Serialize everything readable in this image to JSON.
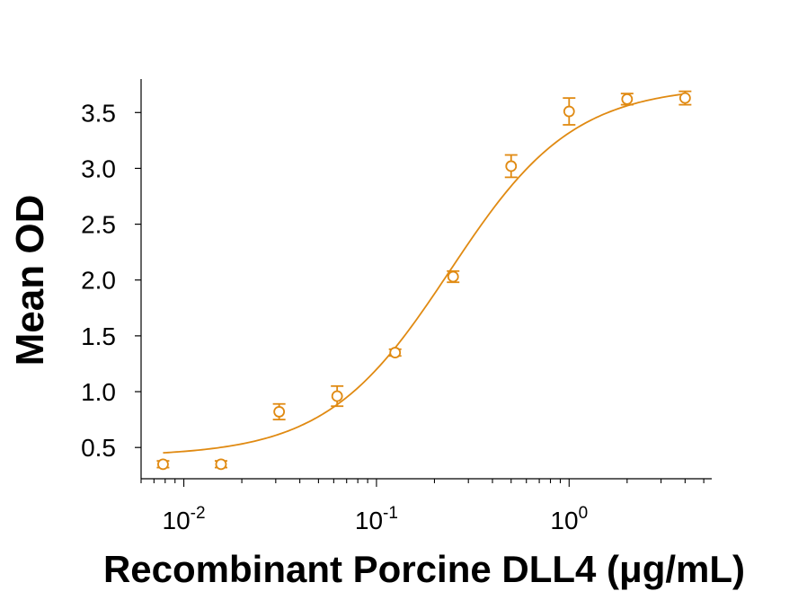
{
  "chart_data": {
    "type": "scatter",
    "title": "",
    "xlabel": "Recombinant Porcine DLL4 (μg/mL)",
    "ylabel": "Mean OD",
    "xscale": "log",
    "xlim": [
      0.006,
      5.5
    ],
    "ylim": [
      0.22,
      3.8
    ],
    "x_ticks": [
      {
        "value": 0.01,
        "base": "10",
        "exp": "-2"
      },
      {
        "value": 0.1,
        "base": "10",
        "exp": "-1"
      },
      {
        "value": 1,
        "base": "10",
        "exp": "0"
      }
    ],
    "y_ticks": [
      {
        "value": 0.5,
        "label": "0.5"
      },
      {
        "value": 1.0,
        "label": "1.0"
      },
      {
        "value": 1.5,
        "label": "1.5"
      },
      {
        "value": 2.0,
        "label": "2.0"
      },
      {
        "value": 2.5,
        "label": "2.5"
      },
      {
        "value": 3.0,
        "label": "3.0"
      },
      {
        "value": 3.5,
        "label": "3.5"
      }
    ],
    "grid": false,
    "legend": "none",
    "color": "#E08A12",
    "series": [
      {
        "points": [
          {
            "x": 0.0078,
            "y": 0.35,
            "err": 0.03
          },
          {
            "x": 0.0156,
            "y": 0.35,
            "err": 0.03
          },
          {
            "x": 0.03125,
            "y": 0.82,
            "err": 0.07
          },
          {
            "x": 0.0625,
            "y": 0.96,
            "err": 0.09
          },
          {
            "x": 0.125,
            "y": 1.35,
            "err": 0.03
          },
          {
            "x": 0.25,
            "y": 2.03,
            "err": 0.05
          },
          {
            "x": 0.5,
            "y": 3.02,
            "err": 0.1
          },
          {
            "x": 1.0,
            "y": 3.51,
            "err": 0.12
          },
          {
            "x": 2.0,
            "y": 3.62,
            "err": 0.05
          },
          {
            "x": 4.0,
            "y": 3.63,
            "err": 0.06
          }
        ],
        "fit": {
          "model": "4PL",
          "bottom": 0.42,
          "top": 3.74,
          "ec50": 0.24,
          "hill": 1.35
        }
      }
    ]
  }
}
